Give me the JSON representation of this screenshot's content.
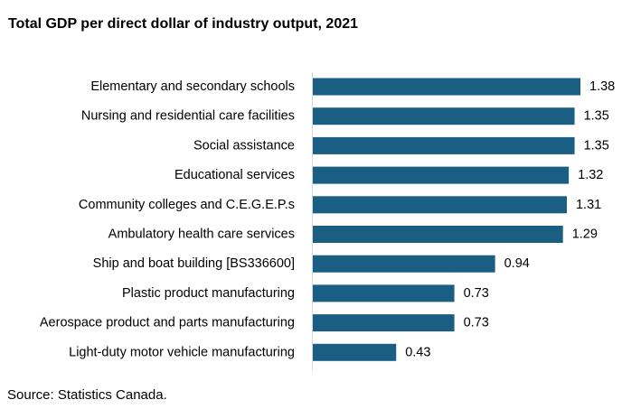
{
  "chart_data": {
    "type": "bar",
    "orientation": "horizontal",
    "title": "Total GDP per direct dollar of industry output, 2021",
    "categories": [
      "Elementary and secondary schools",
      "Nursing and residential care facilities",
      "Social assistance",
      "Educational services",
      "Community colleges and C.E.G.E.P.s",
      "Ambulatory health care services",
      "Ship and boat building  [BS336600]",
      "Plastic product manufacturing",
      "Aerospace product and parts manufacturing ",
      "Light-duty motor vehicle manufacturing"
    ],
    "values": [
      1.38,
      1.35,
      1.35,
      1.32,
      1.31,
      1.29,
      0.94,
      0.73,
      0.73,
      0.43
    ],
    "value_labels": [
      "1.38",
      "1.35",
      "1.35",
      "1.32",
      "1.31",
      "1.29",
      "0.94",
      "0.73",
      "0.73",
      "0.43"
    ],
    "xlim": [
      0,
      1.4
    ],
    "bar_color": "#1b5e84",
    "xlabel": "",
    "ylabel": "",
    "grid": false,
    "legend": "none"
  },
  "source": "Source: Statistics Canada."
}
